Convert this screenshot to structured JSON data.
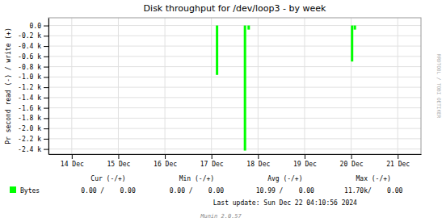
{
  "chart_data": {
    "type": "bar",
    "title": "Disk throughput for /dev/loop3 - by week",
    "ylabel": "Pr second read (-) / write (+)",
    "x": [
      3.62,
      4.22,
      4.3,
      6.52,
      6.58
    ],
    "series": [
      {
        "name": "Bytes",
        "color": "#00ff00",
        "values": [
          -960,
          -2430,
          -80,
          -700,
          -80
        ]
      }
    ],
    "xlim": [
      0,
      8
    ],
    "xticks": [
      {
        "value": 0.5,
        "label": "14 Dec"
      },
      {
        "value": 1.5,
        "label": "15 Dec"
      },
      {
        "value": 2.5,
        "label": "16 Dec"
      },
      {
        "value": 3.5,
        "label": "17 Dec"
      },
      {
        "value": 4.5,
        "label": "18 Dec"
      },
      {
        "value": 5.5,
        "label": "19 Dec"
      },
      {
        "value": 6.5,
        "label": "20 Dec"
      },
      {
        "value": 7.5,
        "label": "21 Dec"
      }
    ],
    "ylim": [
      -2500,
      150
    ],
    "yticks": [
      {
        "value": 0,
        "label": "0.0"
      },
      {
        "value": -200,
        "label": "-0.2 k"
      },
      {
        "value": -400,
        "label": "-0.4 k"
      },
      {
        "value": -600,
        "label": "-0.6 k"
      },
      {
        "value": -800,
        "label": "-0.8 k"
      },
      {
        "value": -1000,
        "label": "-1.0 k"
      },
      {
        "value": -1200,
        "label": "-1.2 k"
      },
      {
        "value": -1400,
        "label": "-1.4 k"
      },
      {
        "value": -1600,
        "label": "-1.6 k"
      },
      {
        "value": -1800,
        "label": "-1.8 k"
      },
      {
        "value": -2000,
        "label": "-2.0 k"
      },
      {
        "value": -2200,
        "label": "-2.2 k"
      },
      {
        "value": -2400,
        "label": "-2.4 k"
      }
    ],
    "grid": true,
    "legend": "bottom left",
    "annotations": [
      "Cur (-/+)",
      "Min (-/+)",
      "Avg (-/+)",
      "Max (-/+)",
      "0.00 /    0.00",
      "0.00 /    0.00",
      "10.99 /    0.00",
      "11.70k/    0.00",
      "Last update: Sun Dec 22 04:10:56 2024",
      "Munin 2.0.57",
      "RRDTOOL / TOBI OETIKER"
    ]
  }
}
